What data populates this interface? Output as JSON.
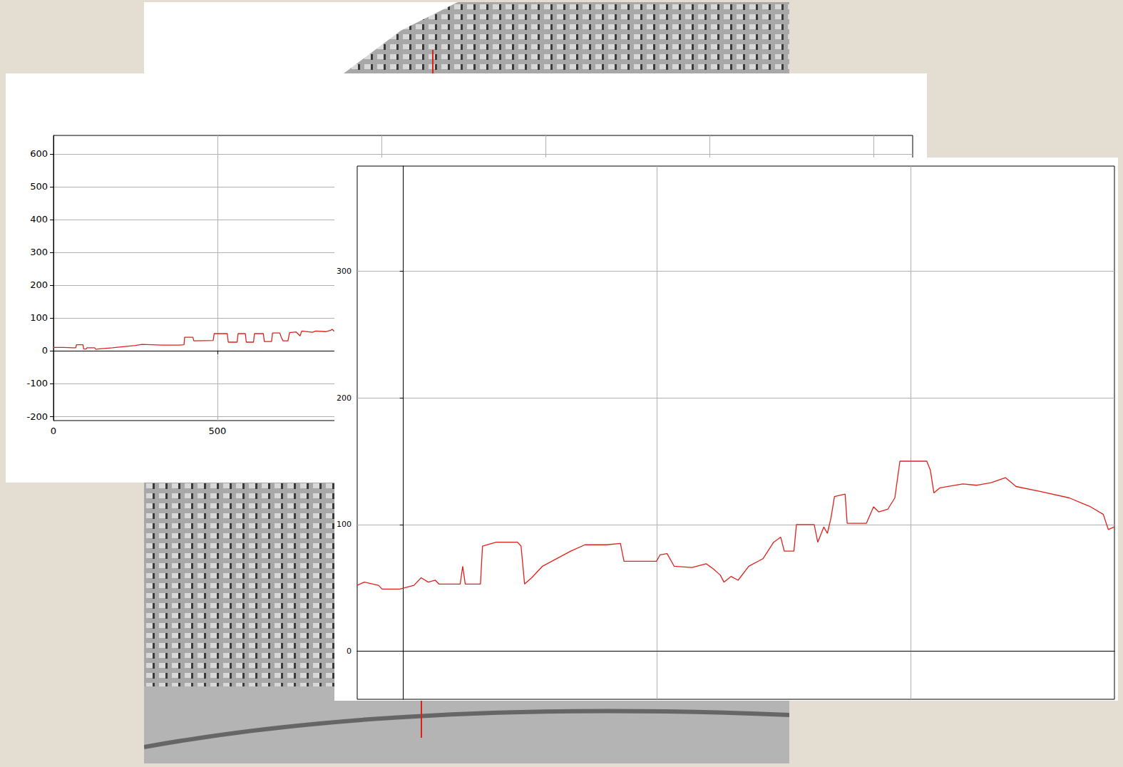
{
  "chart_data": [
    {
      "type": "line",
      "color": "#e0201b",
      "grid": true,
      "xlim": [
        0,
        2620
      ],
      "xticks": [
        0,
        500,
        1000,
        1500,
        2000,
        2500
      ],
      "ylim": [
        -213,
        656
      ],
      "yticks": [
        -200,
        -100,
        0,
        100,
        200,
        300,
        400,
        500,
        600
      ],
      "x": [
        0,
        30,
        60,
        68,
        70,
        90,
        92,
        100,
        102,
        125,
        130,
        135,
        180,
        250,
        270,
        330,
        380,
        398,
        400,
        425,
        428,
        487,
        490,
        530,
        533,
        560,
        563,
        585,
        588,
        610,
        613,
        640,
        643,
        665,
        668,
        690,
        695,
        700,
        715,
        720,
        740,
        752,
        757,
        790,
        800,
        830,
        845,
        850,
        856
      ],
      "values": [
        10,
        10,
        9,
        9,
        18,
        18,
        5,
        5,
        9,
        9,
        4,
        5,
        9,
        16,
        19,
        17,
        17,
        18,
        41,
        41,
        30,
        31,
        52,
        52,
        26,
        26,
        52,
        52,
        26,
        26,
        52,
        52,
        28,
        28,
        54,
        54,
        40,
        30,
        30,
        55,
        57,
        45,
        60,
        56,
        60,
        58,
        62,
        65,
        59
      ]
    },
    {
      "type": "line",
      "color": "#e0201b",
      "grid": true,
      "tick_labels": "y",
      "xlim": [
        -91,
        1402
      ],
      "xticks": [
        0,
        500,
        1000
      ],
      "ylim": [
        -38,
        383
      ],
      "yticks": [
        0,
        100,
        200,
        300
      ],
      "x": [
        -91,
        -77,
        -49,
        -42,
        -7,
        21,
        35,
        49,
        63,
        70,
        112,
        117,
        122,
        152,
        156,
        183,
        225,
        232,
        239,
        253,
        274,
        330,
        358,
        400,
        428,
        435,
        499,
        506,
        520,
        534,
        569,
        597,
        611,
        625,
        632,
        646,
        660,
        681,
        709,
        730,
        744,
        751,
        770,
        775,
        810,
        817,
        829,
        836,
        843,
        850,
        871,
        875,
        913,
        927,
        937,
        955,
        969,
        979,
        1032,
        1039,
        1046,
        1058,
        1103,
        1131,
        1159,
        1187,
        1208,
        1257,
        1313,
        1355,
        1380,
        1390,
        1401
      ],
      "values": [
        52,
        54.5,
        52,
        49,
        49,
        52,
        58,
        54.5,
        56,
        53,
        53,
        67,
        53,
        53,
        83,
        86,
        86,
        83,
        53,
        58,
        67,
        79,
        84,
        84,
        85,
        71,
        71,
        76,
        77,
        67,
        66,
        69,
        65,
        60,
        54.5,
        59,
        56,
        67,
        73,
        86,
        90,
        79,
        79,
        100,
        100,
        86,
        98,
        93,
        105,
        122,
        124,
        101,
        101,
        114,
        110,
        112,
        121,
        150,
        150,
        143,
        125,
        129,
        132,
        131,
        133,
        137,
        130,
        126,
        121,
        114,
        108,
        96,
        98
      ]
    }
  ]
}
